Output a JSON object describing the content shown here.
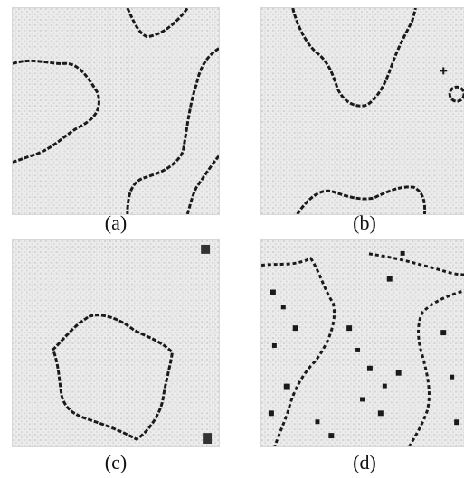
{
  "figure": {
    "panels": [
      {
        "id": "a",
        "label": "(a)"
      },
      {
        "id": "b",
        "label": "(b)"
      },
      {
        "id": "c",
        "label": "(c)"
      },
      {
        "id": "d",
        "label": "(d)"
      }
    ],
    "colors": {
      "background": "#ececec",
      "texture": "#d4d4d4",
      "boundary": "#1a1a1a"
    }
  }
}
